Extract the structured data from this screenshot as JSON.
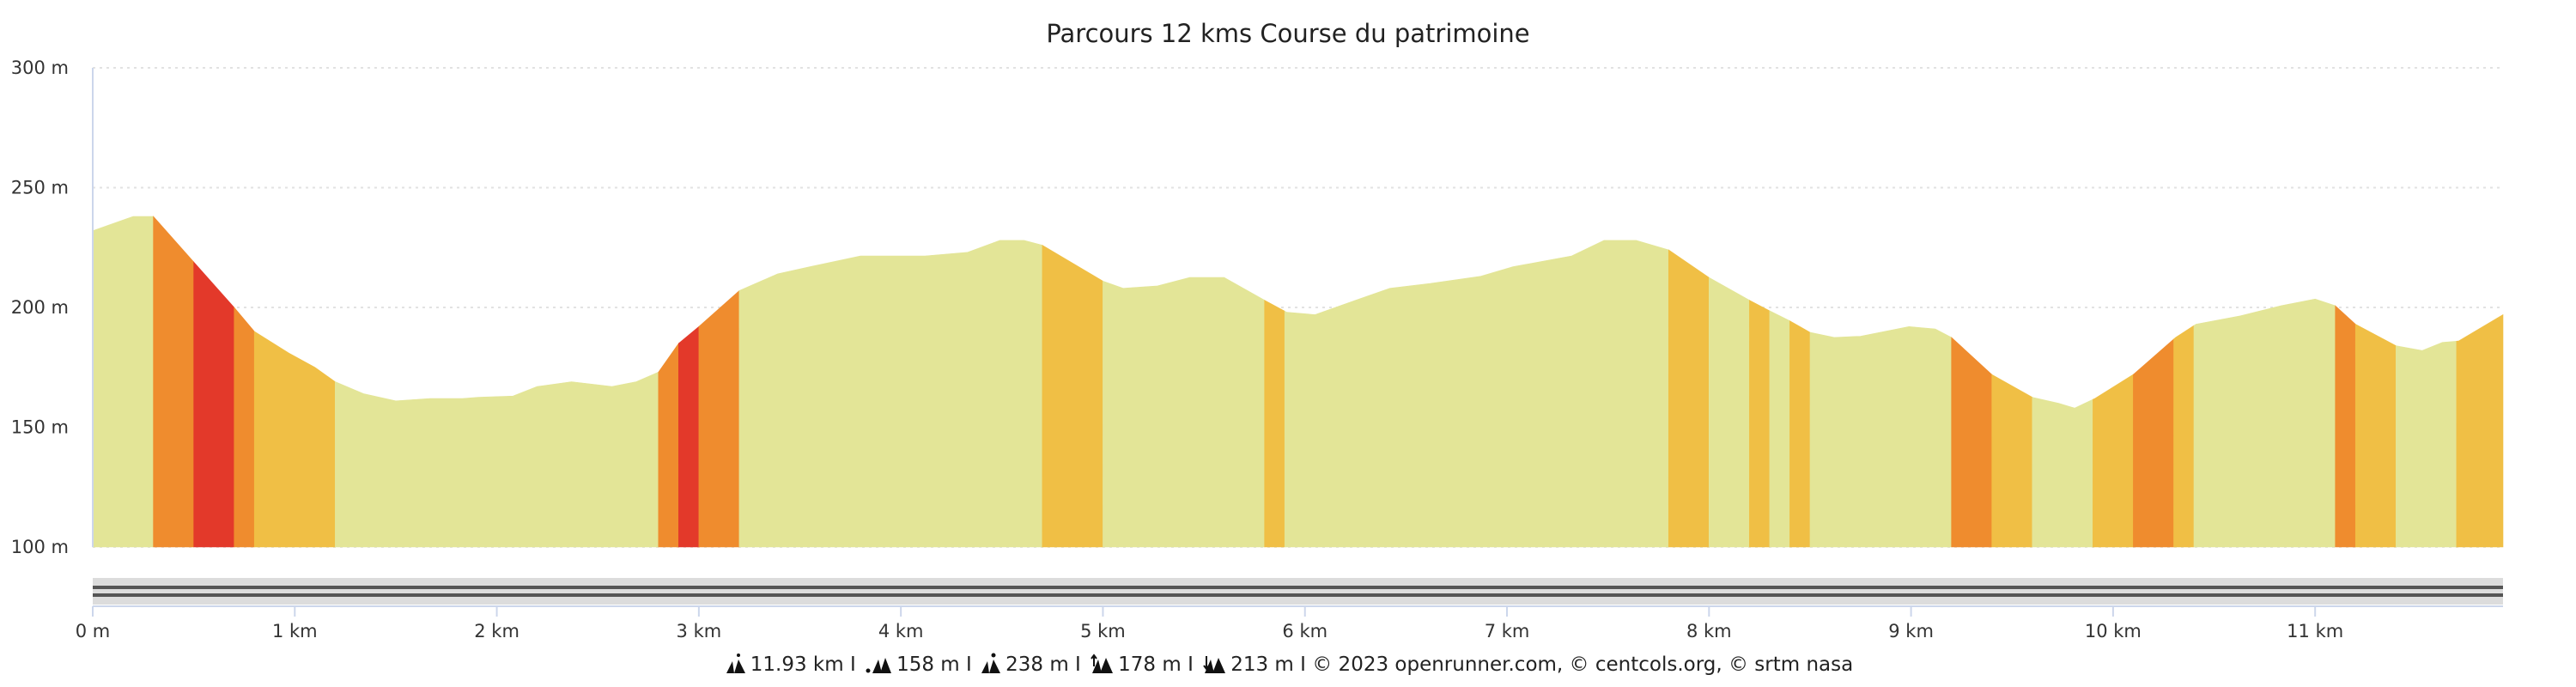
{
  "title": "Parcours 12 kms Course du patrimoine",
  "chart_data": {
    "type": "area",
    "title": "Parcours 12 kms Course du patrimoine",
    "xlabel": "",
    "ylabel": "",
    "xlim": [
      0,
      11.93
    ],
    "ylim": [
      100,
      300
    ],
    "y_ticks": [
      {
        "v": 100,
        "label": "100 m"
      },
      {
        "v": 150,
        "label": "150 m"
      },
      {
        "v": 200,
        "label": "200 m"
      },
      {
        "v": 250,
        "label": "250 m"
      },
      {
        "v": 300,
        "label": "300 m"
      }
    ],
    "x_ticks": [
      {
        "v": 0,
        "label": "0 m"
      },
      {
        "v": 1,
        "label": "1 km"
      },
      {
        "v": 2,
        "label": "2 km"
      },
      {
        "v": 3,
        "label": "3 km"
      },
      {
        "v": 4,
        "label": "4 km"
      },
      {
        "v": 5,
        "label": "5 km"
      },
      {
        "v": 6,
        "label": "6 km"
      },
      {
        "v": 7,
        "label": "7 km"
      },
      {
        "v": 8,
        "label": "8 km"
      },
      {
        "v": 9,
        "label": "9 km"
      },
      {
        "v": 10,
        "label": "10 km"
      },
      {
        "v": 11,
        "label": "11 km"
      }
    ],
    "grid": true,
    "profile_km": [
      0,
      0.2,
      0.3,
      0.5,
      0.7,
      0.8,
      0.97,
      1.1,
      1.2,
      1.34,
      1.5,
      1.67,
      1.83,
      1.91,
      2.08,
      2.2,
      2.37,
      2.57,
      2.69,
      2.8,
      2.9,
      3.0,
      3.2,
      3.39,
      3.55,
      3.8,
      4.12,
      4.33,
      4.49,
      4.61,
      4.7,
      5.0,
      5.1,
      5.27,
      5.43,
      5.6,
      5.8,
      5.91,
      6.05,
      6.25,
      6.42,
      6.62,
      6.87,
      7.03,
      7.32,
      7.48,
      7.64,
      7.8,
      8.0,
      8.2,
      8.3,
      8.4,
      8.5,
      8.62,
      8.75,
      8.99,
      9.12,
      9.2,
      9.4,
      9.6,
      9.73,
      9.81,
      9.91,
      10.1,
      10.31,
      10.41,
      10.63,
      10.83,
      11.0,
      11.1,
      11.2,
      11.4,
      11.53,
      11.63,
      11.71,
      11.93
    ],
    "profile_elevation_m": [
      232,
      238,
      238,
      219,
      200,
      190,
      181,
      175,
      169,
      164,
      161,
      162,
      162,
      162.5,
      163,
      167,
      169,
      167,
      169,
      173,
      185,
      192,
      207,
      214,
      217,
      221.5,
      221.5,
      223,
      228,
      228,
      226,
      211,
      208,
      209,
      212.5,
      212.5,
      203,
      198,
      197,
      203,
      208,
      210,
      213,
      217,
      221.5,
      228,
      228,
      224,
      212.5,
      203,
      198.6,
      194.4,
      189.6,
      187.5,
      188,
      192,
      191,
      187.5,
      172,
      162.5,
      160,
      158,
      162,
      172,
      187.5,
      193,
      196.5,
      200.7,
      203.5,
      200.7,
      193,
      184,
      182,
      185.4,
      186,
      197
    ],
    "colors": {
      "flat": "#e3e597",
      "moderate": "#f0bf45",
      "steep": "#ef8c2e",
      "very_steep": "#e3392a"
    },
    "segments": [
      [
        0,
        0.3,
        "flat"
      ],
      [
        0.3,
        0.5,
        "steep"
      ],
      [
        0.5,
        0.7,
        "very_steep"
      ],
      [
        0.7,
        0.8,
        "steep"
      ],
      [
        0.8,
        1.2,
        "moderate"
      ],
      [
        1.2,
        2.8,
        "flat"
      ],
      [
        2.8,
        2.9,
        "steep"
      ],
      [
        2.9,
        3.0,
        "very_steep"
      ],
      [
        3.0,
        3.2,
        "steep"
      ],
      [
        3.2,
        4.7,
        "flat"
      ],
      [
        4.7,
        5.0,
        "moderate"
      ],
      [
        5.0,
        5.8,
        "flat"
      ],
      [
        5.8,
        5.9,
        "moderate"
      ],
      [
        5.9,
        7.8,
        "flat"
      ],
      [
        7.8,
        8.0,
        "moderate"
      ],
      [
        8.0,
        8.2,
        "flat"
      ],
      [
        8.2,
        8.3,
        "moderate"
      ],
      [
        8.3,
        8.4,
        "flat"
      ],
      [
        8.4,
        8.5,
        "moderate"
      ],
      [
        8.5,
        9.2,
        "flat"
      ],
      [
        9.2,
        9.4,
        "steep"
      ],
      [
        9.4,
        9.6,
        "moderate"
      ],
      [
        9.6,
        9.9,
        "flat"
      ],
      [
        9.9,
        10.1,
        "moderate"
      ],
      [
        10.1,
        10.3,
        "steep"
      ],
      [
        10.3,
        10.4,
        "moderate"
      ],
      [
        10.4,
        11.1,
        "flat"
      ],
      [
        11.1,
        11.2,
        "steep"
      ],
      [
        11.2,
        11.4,
        "moderate"
      ],
      [
        11.4,
        11.7,
        "flat"
      ],
      [
        11.7,
        11.93,
        "moderate"
      ]
    ]
  },
  "footer": {
    "distance": "11.93 km",
    "sep": "I",
    "min_elevation": "158 m",
    "max_elevation": "238 m",
    "ascent": "178 m",
    "descent": "213 m",
    "credits": "© 2023 openrunner.com, © centcols.org, © srtm nasa",
    "icons": [
      "distance-icon",
      "min-elevation-icon",
      "max-elevation-icon",
      "ascent-icon",
      "descent-icon"
    ]
  }
}
